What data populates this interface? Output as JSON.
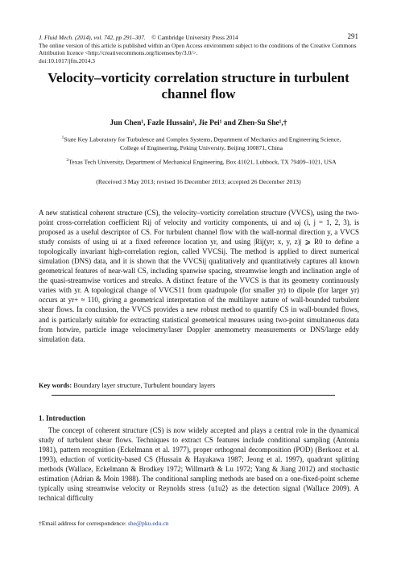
{
  "header": {
    "citation": "J. Fluid Mech. (2014), vol. 742, pp 291–307.",
    "copyright": "© Cambridge University Press 2014",
    "open_access": "The online version of this article is published within an Open Access environment subject to the conditions of the Creative Commons Attribution licence <http://creativecommons.org/licenses/by/3.0/>.",
    "doi": "doi:10.1017/jfm.2014.3",
    "page_number": "291"
  },
  "title": "Velocity–vorticity correlation structure in turbulent channel flow",
  "authors": "Jun Chen¹, Fazle Hussain², Jie Pei¹ and Zhen-Su She¹,†",
  "affiliations": [
    {
      "mark": "1",
      "text": "State Key Laboratory for Turbulence and Complex Systems, Department of Mechanics and Engineering Science, College of Engineering, Peking University, Beijing 100871, China"
    },
    {
      "mark": "2",
      "text": "Texas Tech University, Department of Mechanical Engineering, Box 41021, Lubbock, TX 79409–1021, USA"
    }
  ],
  "received": "(Received 3 May 2013; revised 16 December 2013; accepted 26 December 2013)",
  "abstract": "A new statistical coherent structure (CS), the velocity–vorticity correlation structure (VVCS), using the two-point cross-correlation coefficient Rij of velocity and vorticity components, ui and ωj (i, j = 1, 2, 3), is proposed as a useful descriptor of CS. For turbulent channel flow with the wall-normal direction y, a VVCS study consists of using ui at a fixed reference location yr, and using |Rij(yr; x, y, z)| ⩾ R0 to define a topologically invariant high-correlation region, called VVCSij. The method is applied to direct numerical simulation (DNS) data, and it is shown that the VVCSij qualitatively and quantitatively captures all known geometrical features of near-wall CS, including spanwise spacing, streamwise length and inclination angle of the quasi-streamwise vortices and streaks. A distinct feature of the VVCS is that its geometry continuously varies with yr. A topological change of VVCS11 from quadrupole (for smaller yr) to dipole (for larger yr) occurs at yr+ ≈ 110, giving a geometrical interpretation of the multilayer nature of wall-bounded turbulent shear flows. In conclusion, the VVCS provides a new robust method to quantify CS in wall-bounded flows, and is particularly suitable for extracting statistical geometrical measures using two-point simultaneous data from hotwire, particle image velocimetry/laser Doppler anemometry measurements or DNS/large eddy simulation data.",
  "keywords_label": "Key words:",
  "keywords": "Boundary layer structure, Turbulent boundary layers",
  "section_title": "1. Introduction",
  "intro": "The concept of coherent structure (CS) is now widely accepted and plays a central role in the dynamical study of turbulent shear flows. Techniques to extract CS features include conditional sampling (Antonia 1981), pattern recognition (Eckelmann et al. 1977), proper orthogonal decomposition (POD) (Berkooz et al. 1993), eduction of vorticity-based CS (Hussain & Hayakawa 1987; Jeong et al. 1997), quadrant splitting methods (Wallace, Eckelmann & Brodkey 1972; Willmarth & Lu 1972; Yang & Jiang 2012) and stochastic estimation (Adrian & Moin 1988). The conditional sampling methods are based on a one-fixed-point scheme typically using streamwise velocity or Reynolds stress ⟨u1u2⟩ as the detection signal (Wallace 2009). A technical difficulty",
  "footnote": {
    "label": "†Email address for correspondence:",
    "email": "she@pku.edu.cn"
  },
  "colors": {
    "link": "#1a3fb0",
    "text": "#111111"
  }
}
